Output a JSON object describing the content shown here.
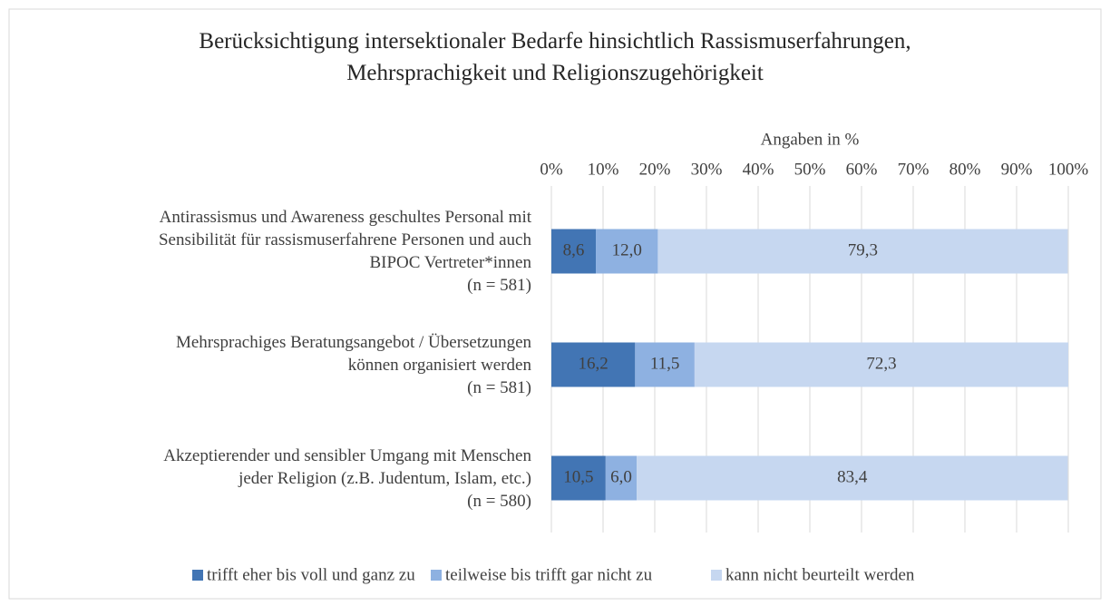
{
  "chart_data": {
    "type": "stacked_barh",
    "title": "Berücksichtigung intersektionaler Bedarfe hinsichtlich Rassismuserfahrungen,\nMehrsprachigkeit und Religionszugehörigkeit",
    "xlabel": "Angaben in %",
    "categories": [
      "Antirassismus und Awareness geschultes Personal mit\nSensibilität für rassismuserfahrene Personen und auch\nBIPOC Vertreter*innen\n(n = 581)",
      "Mehrsprachiges Beratungsangebot / Übersetzungen\nkönnen organisiert werden\n(n = 581)",
      "Akzeptierender und sensibler Umgang mit Menschen\njeder Religion (z.B. Judentum, Islam, etc.)\n(n = 580)"
    ],
    "series": [
      {
        "name": "trifft eher bis voll und ganz zu",
        "color": "#4275b4",
        "values": [
          8.6,
          16.2,
          10.5
        ],
        "value_labels": [
          "8,6",
          "16,2",
          "10,5"
        ]
      },
      {
        "name": "teilweise bis trifft gar nicht zu",
        "color": "#8eb1e1",
        "values": [
          12.0,
          11.5,
          6.0
        ],
        "value_labels": [
          "12,0",
          "11,5",
          "6,0"
        ]
      },
      {
        "name": "kann nicht beurteilt werden",
        "color": "#c6d7f0",
        "values": [
          79.3,
          72.3,
          83.4
        ],
        "value_labels": [
          "79,3",
          "72,3",
          "83,4"
        ]
      }
    ],
    "xlim": [
      0,
      100
    ],
    "xticks": [
      {
        "value": 0,
        "label": "0%"
      },
      {
        "value": 10,
        "label": "10%"
      },
      {
        "value": 20,
        "label": "20%"
      },
      {
        "value": 30,
        "label": "30%"
      },
      {
        "value": 40,
        "label": "40%"
      },
      {
        "value": 50,
        "label": "50%"
      },
      {
        "value": 60,
        "label": "60%"
      },
      {
        "value": 70,
        "label": "70%"
      },
      {
        "value": 80,
        "label": "80%"
      },
      {
        "value": 90,
        "label": "90%"
      },
      {
        "value": 100,
        "label": "100%"
      }
    ],
    "grid": true,
    "legend": "bottom"
  }
}
